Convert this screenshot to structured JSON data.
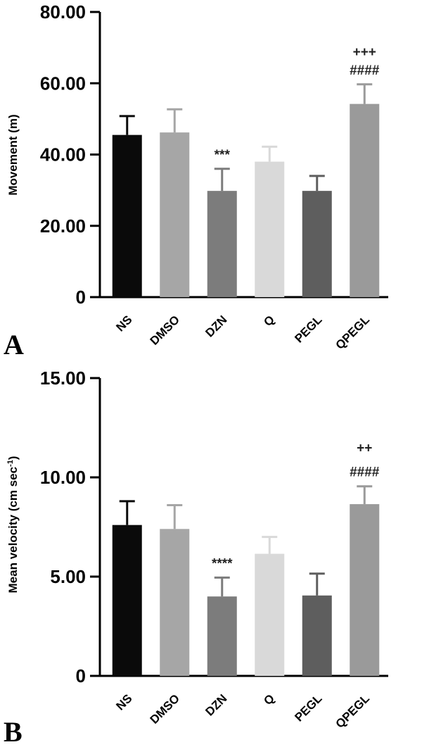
{
  "chart_data": [
    {
      "type": "bar",
      "panel_label": "A",
      "ylabel": "Movement (m)",
      "ylim": [
        0,
        80
      ],
      "yticks": [
        0,
        20,
        40,
        60,
        80
      ],
      "ytick_labels": [
        "0",
        "20.00",
        "40.00",
        "60.00",
        "80.00"
      ],
      "categories": [
        "NS",
        "DMSO",
        "DZN",
        "Q",
        "PEGL",
        "QPEGL"
      ],
      "values": [
        45.5,
        46.2,
        29.8,
        38.0,
        29.8,
        54.2
      ],
      "errors": [
        5.3,
        6.5,
        6.2,
        4.2,
        4.2,
        5.5
      ],
      "colors": [
        "#0a0a0a",
        "#a6a6a6",
        "#7c7c7c",
        "#d9d9d9",
        "#5e5e5e",
        "#9a9a9a"
      ],
      "annotations": [
        {
          "category": "DZN",
          "lines": [
            "***"
          ]
        },
        {
          "category": "QPEGL",
          "lines": [
            "+++",
            "####"
          ]
        }
      ],
      "grid": false
    },
    {
      "type": "bar",
      "panel_label": "B",
      "ylabel": "Mean velocity (cm sec",
      "ylabel_sup": "-1",
      "ylabel_close": ")",
      "ylim": [
        0,
        15
      ],
      "yticks": [
        0,
        5,
        10,
        15
      ],
      "ytick_labels": [
        "0",
        "5.00",
        "10.00",
        "15.00"
      ],
      "categories": [
        "NS",
        "DMSO",
        "DZN",
        "Q",
        "PEGL",
        "QPEGL"
      ],
      "values": [
        7.6,
        7.4,
        4.0,
        6.15,
        4.05,
        8.65
      ],
      "errors": [
        1.2,
        1.2,
        0.95,
        0.85,
        1.1,
        0.9
      ],
      "colors": [
        "#0a0a0a",
        "#a6a6a6",
        "#7c7c7c",
        "#d9d9d9",
        "#5e5e5e",
        "#9a9a9a"
      ],
      "annotations": [
        {
          "category": "DZN",
          "lines": [
            "****"
          ]
        },
        {
          "category": "QPEGL",
          "lines": [
            "++",
            "####"
          ]
        }
      ],
      "grid": false
    }
  ]
}
